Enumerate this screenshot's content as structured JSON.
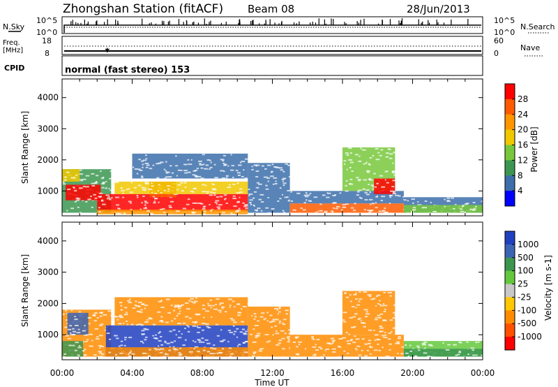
{
  "header": {
    "station": "Zhongshan Station (fitACF)",
    "beam": "Beam 08",
    "date": "28/Jun/2013"
  },
  "top_panels": {
    "nsky": {
      "label": "N.Sky",
      "right_label": "N.Search",
      "left_ticks": [
        "10^5",
        "10^0"
      ],
      "right_ticks": [
        "10^5",
        "10^0"
      ]
    },
    "freq": {
      "label_line1": "Freq.",
      "label_line2": "[MHz]",
      "right_label": "Nave",
      "left_ticks": [
        "18",
        "8"
      ],
      "right_ticks": [
        "60",
        "0"
      ]
    },
    "cpid": {
      "label": "CPID",
      "text": "normal (fast stereo) 153"
    }
  },
  "chart_data": [
    {
      "type": "heatmap",
      "name": "Power",
      "ylabel": "Slant Range [km]",
      "yticks": [
        1000,
        2000,
        3000,
        4000
      ],
      "ylim": [
        200,
        4600
      ],
      "xlim": [
        0,
        24
      ],
      "xticks": [
        "00:00",
        "04:00",
        "08:00",
        "12:00",
        "16:00",
        "20:00",
        "00:00"
      ],
      "colorbar": {
        "label": "Power [dB]",
        "ticks": [
          "28",
          "24",
          "20",
          "16",
          "12",
          "8",
          "4"
        ],
        "colors": [
          "#ff0000",
          "#ff5a00",
          "#ff9600",
          "#f0c800",
          "#78c83c",
          "#3c9650",
          "#3c6eaa",
          "#0000ff"
        ]
      },
      "regions": [
        {
          "t0": 0.0,
          "t1": 2.8,
          "r0": 300,
          "r1": 1700,
          "color": "#3c9650"
        },
        {
          "t0": 0.2,
          "t1": 2.2,
          "r0": 700,
          "r1": 1200,
          "color": "#ff0000"
        },
        {
          "t0": 0.0,
          "t1": 1.0,
          "r0": 1300,
          "r1": 1700,
          "color": "#f0c800"
        },
        {
          "t0": 2.0,
          "t1": 10.6,
          "r0": 350,
          "r1": 900,
          "color": "#ff0000"
        },
        {
          "t0": 2.0,
          "t1": 10.6,
          "r0": 250,
          "r1": 400,
          "color": "#ff9600"
        },
        {
          "t0": 5.0,
          "t1": 6.5,
          "r0": 800,
          "r1": 1300,
          "color": "#ff5a00"
        },
        {
          "t0": 3.0,
          "t1": 10.6,
          "r0": 900,
          "r1": 1300,
          "color": "#f0c800"
        },
        {
          "t0": 4.0,
          "t1": 10.6,
          "r0": 1400,
          "r1": 2200,
          "color": "#3c6eaa"
        },
        {
          "t0": 10.6,
          "t1": 13.0,
          "r0": 300,
          "r1": 1900,
          "color": "#3c6eaa"
        },
        {
          "t0": 13.0,
          "t1": 19.5,
          "r0": 300,
          "r1": 600,
          "color": "#ff5a00"
        },
        {
          "t0": 13.0,
          "t1": 19.5,
          "r0": 600,
          "r1": 1000,
          "color": "#3c6eaa"
        },
        {
          "t0": 16.0,
          "t1": 19.0,
          "r0": 1000,
          "r1": 2400,
          "color": "#78c83c"
        },
        {
          "t0": 17.8,
          "t1": 19.0,
          "r0": 900,
          "r1": 1400,
          "color": "#ff0000"
        },
        {
          "t0": 19.5,
          "t1": 24.0,
          "r0": 300,
          "r1": 800,
          "color": "#3c6eaa"
        },
        {
          "t0": 19.5,
          "t1": 24.0,
          "r0": 300,
          "r1": 550,
          "color": "#78c83c"
        }
      ]
    },
    {
      "type": "heatmap",
      "name": "Velocity",
      "ylabel": "Slant Range [km]",
      "yticks": [
        1000,
        2000,
        3000,
        4000
      ],
      "ylim": [
        200,
        4600
      ],
      "xlim": [
        0,
        24
      ],
      "xlabel": "Time UT",
      "xticks": [
        "00:00",
        "04:00",
        "08:00",
        "12:00",
        "16:00",
        "20:00",
        "00:00"
      ],
      "colorbar": {
        "label": "Velocity [m s-1]",
        "ticks": [
          "1000",
          "500",
          "100",
          "25",
          "-25",
          "-100",
          "-500",
          "-1000"
        ],
        "colors": [
          "#2040c0",
          "#3c64b4",
          "#3c9650",
          "#64c83c",
          "#c8c8c8",
          "#ffc800",
          "#ff8c00",
          "#ff5000",
          "#ff0000"
        ]
      },
      "regions": [
        {
          "t0": 0.0,
          "t1": 2.8,
          "r0": 300,
          "r1": 1800,
          "color": "#ff8c00"
        },
        {
          "t0": 0.0,
          "t1": 1.2,
          "r0": 300,
          "r1": 800,
          "color": "#3c9650"
        },
        {
          "t0": 0.3,
          "t1": 1.5,
          "r0": 1000,
          "r1": 1700,
          "color": "#3c64b4"
        },
        {
          "t0": 2.5,
          "t1": 10.6,
          "r0": 300,
          "r1": 1300,
          "color": "#2040c0"
        },
        {
          "t0": 2.5,
          "t1": 10.6,
          "r0": 300,
          "r1": 600,
          "color": "#ff8c00"
        },
        {
          "t0": 3.0,
          "t1": 10.6,
          "r0": 1300,
          "r1": 2200,
          "color": "#ff8c00"
        },
        {
          "t0": 10.6,
          "t1": 13.0,
          "r0": 300,
          "r1": 1900,
          "color": "#ff8c00"
        },
        {
          "t0": 13.0,
          "t1": 19.5,
          "r0": 300,
          "r1": 1000,
          "color": "#ff8c00"
        },
        {
          "t0": 16.0,
          "t1": 19.0,
          "r0": 1000,
          "r1": 2400,
          "color": "#ff8c00"
        },
        {
          "t0": 19.5,
          "t1": 24.0,
          "r0": 300,
          "r1": 800,
          "color": "#64c83c"
        },
        {
          "t0": 19.5,
          "t1": 24.0,
          "r0": 300,
          "r1": 550,
          "color": "#3c9650"
        }
      ]
    }
  ]
}
